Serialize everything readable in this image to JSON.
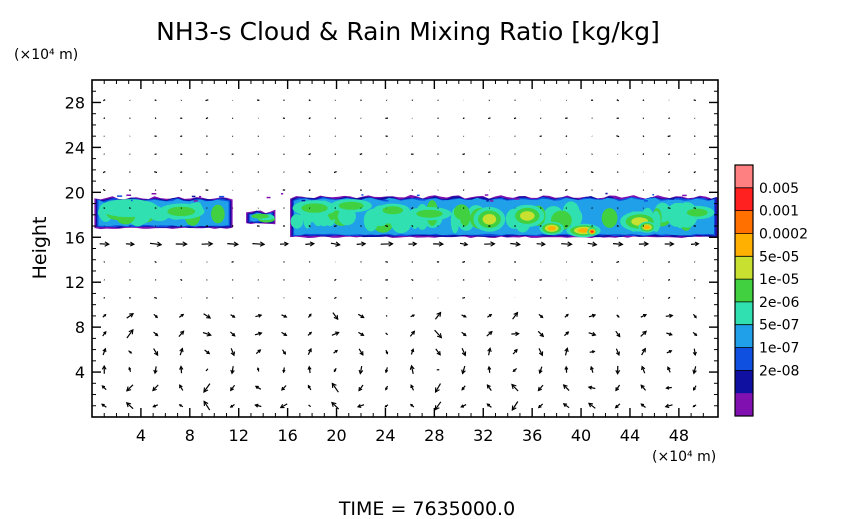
{
  "chart_data": {
    "type": "heatmap",
    "title": "NH3-s Cloud & Rain Mixing Ratio [kg/kg]",
    "ylabel": "Height",
    "y_unit": "(×10⁴ m)",
    "x_unit": "(×10⁴ m)",
    "xlim": [
      0,
      51.2
    ],
    "ylim": [
      0,
      30
    ],
    "x_ticks": [
      4,
      8,
      12,
      16,
      20,
      24,
      28,
      32,
      36,
      40,
      44,
      48
    ],
    "y_ticks": [
      4,
      8,
      12,
      16,
      20,
      24,
      28
    ],
    "colorbar": {
      "labels": [
        "0.005",
        "0.001",
        "0.0002",
        "5e-05",
        "1e-05",
        "2e-06",
        "5e-07",
        "1e-07",
        "2e-08"
      ],
      "colors": [
        "#ff8080",
        "#ff2020",
        "#ff7000",
        "#ffb000",
        "#c8e030",
        "#40d040",
        "#30e0b0",
        "#20a0e8",
        "#1050e0",
        "#1010a0",
        "#8010b0"
      ]
    },
    "cloud_layer": {
      "base_height": 16,
      "top_height": 19.5,
      "segments": [
        {
          "x0": 0.2,
          "x1": 11.5,
          "y0": 16.8,
          "y1": 19.5,
          "max_level": 6
        },
        {
          "x0": 12.6,
          "x1": 15.0,
          "y0": 17.2,
          "y1": 18.3,
          "max_level": 5
        },
        {
          "x0": 16.2,
          "x1": 51.2,
          "y0": 16.0,
          "y1": 19.6,
          "max_level": 6
        }
      ],
      "cells": [
        {
          "x": 3.0,
          "y": 18.6,
          "rx": 2.4,
          "ry": 0.8,
          "level": 4
        },
        {
          "x": 7.3,
          "y": 18.3,
          "rx": 1.9,
          "ry": 0.7,
          "level": 5
        },
        {
          "x": 18.2,
          "y": 18.6,
          "rx": 1.8,
          "ry": 0.7,
          "level": 5
        },
        {
          "x": 21.2,
          "y": 18.8,
          "rx": 1.7,
          "ry": 0.6,
          "level": 5
        },
        {
          "x": 24.6,
          "y": 18.4,
          "rx": 1.4,
          "ry": 0.6,
          "level": 5
        },
        {
          "x": 27.6,
          "y": 18.1,
          "rx": 1.8,
          "ry": 0.6,
          "level": 5
        },
        {
          "x": 32.5,
          "y": 17.6,
          "rx": 1.3,
          "ry": 1.1,
          "level": 6
        },
        {
          "x": 35.6,
          "y": 17.9,
          "rx": 1.4,
          "ry": 1.0,
          "level": 6
        },
        {
          "x": 37.6,
          "y": 16.8,
          "rx": 1.0,
          "ry": 0.6,
          "level": 7
        },
        {
          "x": 40.2,
          "y": 16.6,
          "rx": 1.4,
          "ry": 0.6,
          "level": 7
        },
        {
          "x": 40.9,
          "y": 16.5,
          "rx": 0.4,
          "ry": 0.35,
          "level": 9
        },
        {
          "x": 44.8,
          "y": 17.4,
          "rx": 1.6,
          "ry": 0.9,
          "level": 6
        },
        {
          "x": 45.4,
          "y": 16.9,
          "rx": 0.7,
          "ry": 0.5,
          "level": 7
        },
        {
          "x": 49.5,
          "y": 18.2,
          "rx": 1.4,
          "ry": 0.6,
          "level": 5
        }
      ]
    },
    "wind_vectors": {
      "kind": "quiver",
      "convective_cells_x": [
        3.5,
        9.5,
        14.5,
        20.5,
        28.5,
        34.5,
        40.5,
        46.5
      ],
      "convective_cell_top": 9.5,
      "upper_flow": "weak eastward drift"
    },
    "time_label": "TIME  =  7635000.0"
  }
}
